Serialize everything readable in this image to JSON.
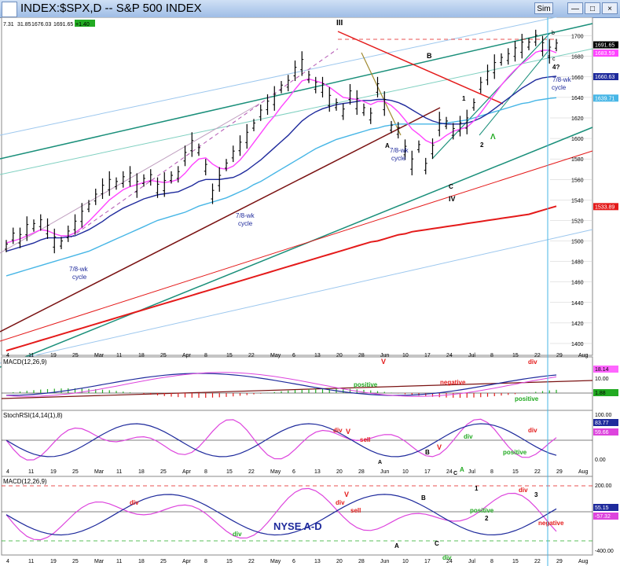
{
  "window": {
    "title": "INDEX:$SPX,D -- S&P 500 INDEX",
    "sim_button": "Sim",
    "buttons": [
      "Sim",
      "—",
      "□",
      "×"
    ]
  },
  "price_panel": {
    "header_values": [
      "7.31",
      "31.85",
      "1676.03",
      "1691.65",
      "+1.40"
    ],
    "y_ticks": [
      1700,
      1680,
      1660,
      1640,
      1620,
      1600,
      1580,
      1560,
      1540,
      1520,
      1500,
      1480,
      1460,
      1440,
      1420,
      1400
    ],
    "right_labels": [
      {
        "text": "1691.65",
        "color": "#ffffff",
        "bg": "#000000"
      },
      {
        "text": "1683.59",
        "color": "#ffffff",
        "bg": "#ff44ff"
      },
      {
        "text": "1660.63",
        "color": "#ffffff",
        "bg": "#1e2a9c"
      },
      {
        "text": "1639.71",
        "color": "#ffffff",
        "bg": "#47b6e6"
      },
      {
        "text": "1533.89",
        "color": "#ffffff",
        "bg": "#e41a1a"
      }
    ],
    "annotations": [
      "III",
      "B",
      "A",
      "7/8-wk",
      "cycle",
      "C",
      "IV",
      "1",
      "2",
      "Λ",
      "b",
      "a",
      "c",
      "4?",
      "7/8-wk",
      "cycle",
      "7/8-wk",
      "cycle",
      "7/8-wk",
      "cycle"
    ]
  },
  "macd_panel": {
    "label": "MACD(12,26,9)",
    "annotations": [
      "V",
      "positive",
      "negative",
      "div",
      "positive"
    ],
    "right_labels": [
      {
        "text": "18.14",
        "color": "#000",
        "bg": "#ff66ff"
      },
      {
        "text": "10.00",
        "color": "#000",
        "bg": "none"
      },
      {
        "text": "1.88",
        "color": "#000",
        "bg": "#22aa22"
      }
    ]
  },
  "stoch_panel": {
    "label": "StochRSI(14,14(1),8)",
    "annotations": [
      "div",
      "V",
      "sell",
      "B",
      "V",
      "A",
      "A",
      "C",
      "div",
      "positive",
      "div"
    ],
    "right_labels": [
      {
        "text": "100.00",
        "color": "#000",
        "bg": "none"
      },
      {
        "text": "83.77",
        "color": "#fff",
        "bg": "#1e2a9c"
      },
      {
        "text": "59.66",
        "color": "#fff",
        "bg": "#dd44dd"
      },
      {
        "text": "0.00",
        "color": "#000",
        "bg": "none"
      }
    ]
  },
  "adline_panel": {
    "label": "MACD(12,26,9)",
    "title": "NYSE A-D",
    "annotations": [
      "div",
      "V",
      "div",
      "sell",
      "div",
      "B",
      "1",
      "A",
      "C",
      "div",
      "2",
      "positive",
      "div",
      "3",
      "negative"
    ],
    "right_labels": [
      {
        "text": "200.00",
        "color": "#000",
        "bg": "none"
      },
      {
        "text": "55.15",
        "color": "#fff",
        "bg": "#1e2a9c"
      },
      {
        "text": "-57.32",
        "color": "#fff",
        "bg": "#dd44dd"
      },
      {
        "text": "-400.00",
        "color": "#000",
        "bg": "none"
      }
    ]
  },
  "x_axis": {
    "ticks": [
      "4",
      "11",
      "19",
      "25",
      "Mar",
      "11",
      "18",
      "25",
      "Apr",
      "8",
      "15",
      "22",
      "May",
      "6",
      "13",
      "20",
      "28",
      "Jun",
      "10",
      "17",
      "24",
      "Jul",
      "8",
      "15",
      "22",
      "29",
      "Aug"
    ],
    "small_labels": [
      "Feb",
      "Mar",
      "Apr",
      "May",
      "Jun",
      "Jul",
      "Aug"
    ]
  },
  "chart_data": {
    "type": "line",
    "title": "INDEX:$SPX,D -- S&P 500 INDEX",
    "ylim": [
      1390,
      1712
    ],
    "series": [
      {
        "name": "Price",
        "values": [
          1495,
          1505,
          1503,
          1512,
          1515,
          1518,
          1512,
          1500,
          1498,
          1507,
          1516,
          1525,
          1534,
          1543,
          1551,
          1556,
          1556,
          1560,
          1563,
          1554,
          1559,
          1562,
          1552,
          1555,
          1562,
          1565,
          1583,
          1594,
          1589,
          1572,
          1546,
          1560,
          1574,
          1585,
          1593,
          1602,
          1613,
          1625,
          1633,
          1639,
          1650,
          1654,
          1666,
          1673,
          1660,
          1652,
          1650,
          1638,
          1633,
          1626,
          1643,
          1635,
          1628,
          1622,
          1650,
          1634,
          1611,
          1608,
          1589,
          1576,
          1592,
          1573,
          1590,
          1614,
          1615,
          1607,
          1612,
          1616,
          1633,
          1652,
          1662,
          1670,
          1677,
          1680,
          1685,
          1690,
          1692,
          1698,
          1690,
          1685,
          1691
        ]
      },
      {
        "name": "MA fast (magenta)",
        "values": [
          1498,
          1500,
          1502,
          1505,
          1508,
          1511,
          1510,
          1507,
          1505,
          1505,
          1508,
          1513,
          1519,
          1526,
          1533,
          1540,
          1545,
          1550,
          1553,
          1555,
          1557,
          1559,
          1558,
          1557,
          1558,
          1560,
          1566,
          1574,
          1580,
          1581,
          1575,
          1571,
          1570,
          1573,
          1579,
          1587,
          1596,
          1605,
          1614,
          1622,
          1631,
          1639,
          1648,
          1656,
          1658,
          1656,
          1654,
          1650,
          1645,
          1640,
          1639,
          1638,
          1636,
          1633,
          1636,
          1636,
          1632,
          1626,
          1618,
          1609,
          1604,
          1598,
          1595,
          1598,
          1603,
          1607,
          1609,
          1611,
          1617,
          1625,
          1634,
          1643,
          1652,
          1660,
          1667,
          1673,
          1678,
          1684,
          1686,
          1686,
          1683.59
        ]
      },
      {
        "name": "MA mid (navy)",
        "values": [
          1490,
          1492,
          1494,
          1496,
          1498,
          1501,
          1503,
          1503,
          1503,
          1504,
          1505,
          1508,
          1511,
          1515,
          1519,
          1524,
          1528,
          1532,
          1535,
          1538,
          1541,
          1543,
          1545,
          1546,
          1547,
          1548,
          1551,
          1554,
          1558,
          1560,
          1560,
          1560,
          1561,
          1562,
          1565,
          1569,
          1574,
          1579,
          1585,
          1591,
          1597,
          1603,
          1610,
          1617,
          1622,
          1626,
          1629,
          1631,
          1633,
          1634,
          1635,
          1636,
          1637,
          1637,
          1638,
          1638,
          1637,
          1635,
          1632,
          1628,
          1624,
          1620,
          1617,
          1615,
          1614,
          1614,
          1614,
          1615,
          1617,
          1620,
          1624,
          1629,
          1634,
          1639,
          1644,
          1649,
          1653,
          1657,
          1659,
          1660,
          1660.63
        ]
      },
      {
        "name": "MA slow (light blue)",
        "values": [
          1466,
          1468,
          1470,
          1472,
          1474,
          1476,
          1478,
          1480,
          1482,
          1484,
          1486,
          1488,
          1490,
          1493,
          1496,
          1499,
          1502,
          1505,
          1508,
          1511,
          1514,
          1517,
          1520,
          1522,
          1524,
          1526,
          1528,
          1531,
          1534,
          1536,
          1538,
          1540,
          1542,
          1545,
          1548,
          1551,
          1555,
          1558,
          1562,
          1566,
          1570,
          1574,
          1578,
          1582,
          1586,
          1590,
          1593,
          1596,
          1599,
          1601,
          1603,
          1605,
          1607,
          1609,
          1610,
          1612,
          1613,
          1614,
          1614,
          1614,
          1614,
          1614,
          1614,
          1614,
          1615,
          1616,
          1617,
          1618,
          1620,
          1622,
          1624,
          1626,
          1628,
          1630,
          1632,
          1634,
          1635,
          1637,
          1638,
          1639,
          1639.71
        ]
      },
      {
        "name": "MA long (red)",
        "values": [
          1393,
          1395,
          1397,
          1399,
          1401,
          1403,
          1405,
          1407,
          1409,
          1411,
          1413,
          1415,
          1417,
          1419,
          1421,
          1423,
          1425,
          1427,
          1429,
          1431,
          1433,
          1435,
          1437,
          1439,
          1441,
          1443,
          1445,
          1447,
          1449,
          1451,
          1453,
          1455,
          1457,
          1459,
          1461,
          1463,
          1465,
          1467,
          1469,
          1471,
          1473,
          1475,
          1477,
          1479,
          1481,
          1483,
          1485,
          1487,
          1489,
          1491,
          1493,
          1495,
          1497,
          1499,
          1500,
          1502,
          1504,
          1506,
          1507,
          1509,
          1510,
          1511,
          1512,
          1513,
          1514,
          1515,
          1516,
          1517,
          1518,
          1519,
          1520,
          1521,
          1522,
          1523,
          1524,
          1525,
          1526,
          1528,
          1530,
          1532,
          1533.89
        ]
      }
    ]
  }
}
